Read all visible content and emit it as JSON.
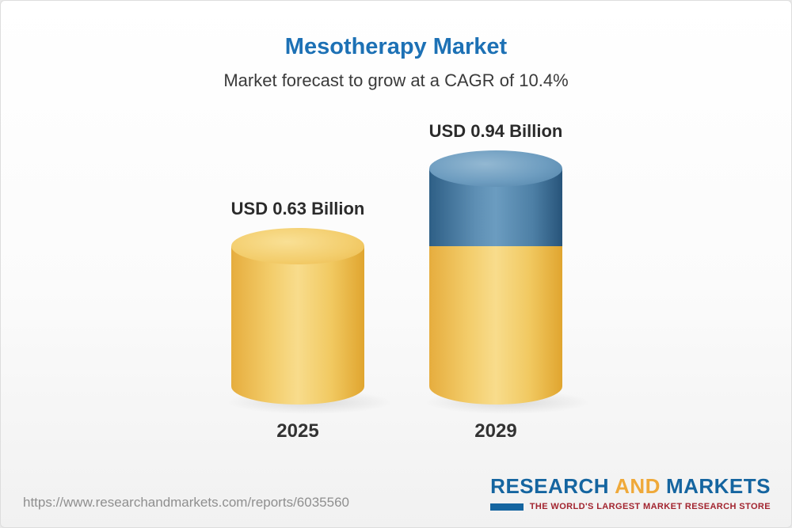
{
  "header": {
    "title": "Mesotherapy Market",
    "subtitle": "Market forecast to grow at a CAGR of 10.4%"
  },
  "chart_data": {
    "type": "bar",
    "title": "Mesotherapy Market",
    "subtitle": "Market forecast to grow at a CAGR of 10.4%",
    "cagr": "10.4%",
    "unit": "USD Billion",
    "categories": [
      "2025",
      "2029"
    ],
    "values": [
      0.63,
      0.94
    ],
    "ylim": [
      0,
      1
    ],
    "grid": false,
    "legend": false,
    "bars": [
      {
        "category": "2025",
        "value": 0.63,
        "label": "USD 0.63 Billion",
        "segments": [
          {
            "value": 0.63,
            "color": "#f0c860"
          }
        ]
      },
      {
        "category": "2029",
        "value": 0.94,
        "label": "USD 0.94 Billion",
        "segments": [
          {
            "value": 0.63,
            "color": "#f0c860"
          },
          {
            "value": 0.31,
            "color": "#4a7ba6"
          }
        ]
      }
    ],
    "colors": {
      "base_segment": "#f0c860",
      "growth_segment": "#4a7ba6",
      "title": "#1d71b5"
    }
  },
  "footer": {
    "url": "https://www.researchandmarkets.com/reports/6035560",
    "logo": {
      "word1": "RESEARCH",
      "word2": "AND",
      "word3": "MARKETS",
      "tagline": "THE WORLD'S LARGEST MARKET RESEARCH STORE"
    }
  }
}
